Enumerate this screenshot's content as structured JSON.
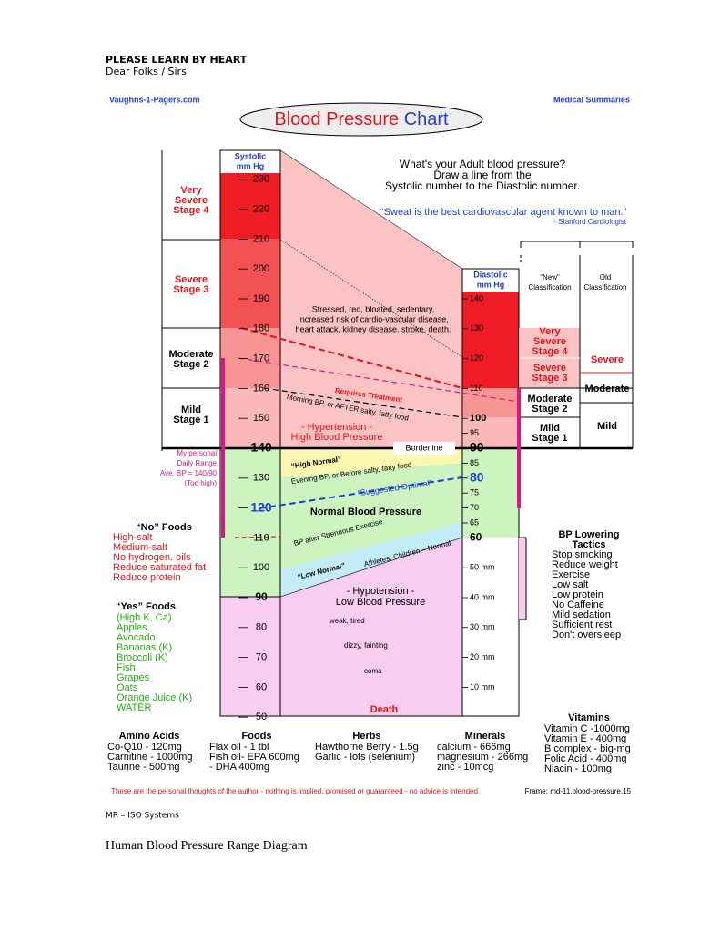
{
  "header": {
    "title": "PLEASE LEARN BY HEART",
    "subtitle": "Dear Folks / Sirs"
  },
  "chart": {
    "source": "Vaughns-1-Pagers.com",
    "series_name": "Medical Summaries",
    "title": "Blood Pressure",
    "title_accent": "Chart",
    "question": [
      "What's your Adult blood pressure?",
      "Draw a line from the",
      "Systolic number to the Diastolic number."
    ],
    "quote": "“Sweat is the best cardiovascular agent known to man.”",
    "quote_source": "- Stanford Cardiologist",
    "systolic": {
      "header": [
        "Systolic",
        "mm Hg"
      ],
      "ticks": [
        230,
        220,
        210,
        200,
        190,
        180,
        170,
        160,
        150,
        140,
        130,
        120,
        110,
        100,
        90,
        80,
        70,
        60,
        50
      ]
    },
    "diastolic": {
      "header": [
        "Diastolic",
        "mm Hg"
      ],
      "ticks": [
        140,
        130,
        120,
        110,
        100,
        95,
        90,
        85,
        80,
        75,
        70,
        65,
        60,
        {
          "value": 50,
          "label": "50 mm"
        },
        {
          "value": 40,
          "label": "40 mm"
        },
        {
          "value": 30,
          "label": "30 mm"
        },
        {
          "value": 20,
          "label": "20 mm"
        },
        {
          "value": 10,
          "label": "10 mm"
        }
      ]
    },
    "stages_left": [
      [
        "Very",
        "Severe",
        "Stage 4"
      ],
      [
        "Severe",
        "Stage 3"
      ],
      [
        "Moderate",
        "Stage 2"
      ],
      [
        "Mild",
        "Stage 1"
      ]
    ],
    "new_header": [
      "“New”",
      "Classification"
    ],
    "old_header": [
      "Old",
      "Classification"
    ],
    "new_stages": [
      [
        "Very",
        "Severe",
        "Stage 4"
      ],
      [
        "Severe",
        "Stage 3"
      ],
      [
        "Moderate",
        "Stage 2"
      ],
      [
        "Mild",
        "Stage 1"
      ]
    ],
    "old_stages": [
      "Severe",
      "Moderate",
      "Mild"
    ],
    "zone_notes": [
      "Stressed, red, bloated, sedentary,",
      "Increased risk of cardio-vascular disease,",
      "heart attack, kidney disease, stroke, death."
    ],
    "requires_treatment": "Requires Treatment",
    "morning_bp": "Morning BP, or AFTER salty, fatty food",
    "hypertension": [
      "- Hypertension -",
      "High  Blood  Pressure"
    ],
    "borderline": "Borderline",
    "high_normal": "“High Normal”",
    "evening_bp": "Evening BP, or Before salty, fatty food",
    "suggested_optimal": "“Suggested Optimal”",
    "normal": "Normal Blood Pressure",
    "after_exercise": "BP after Strenuous Exercise",
    "low_normal": "“Low Normal”",
    "athletes": "Athletes, Children ~ Normal",
    "hypotension": [
      "- Hypotension -",
      "Low  Blood  Pressure"
    ],
    "weak": "weak, tired",
    "dizzy": "dizzy, fainting",
    "coma": "coma",
    "death": "Death",
    "personal_range": [
      "My personal",
      "Daily Range",
      "Ave. BP = 140/90",
      "(Too high)"
    ],
    "no_foods": {
      "title": "“No” Foods",
      "items": [
        "High-salt",
        "Medium-salt",
        "No hydrogen. oils",
        "Reduce saturated fat",
        "Reduce protein"
      ]
    },
    "yes_foods": {
      "title": "“Yes” Foods",
      "items": [
        "(High K, Ca)",
        "Apples",
        "Avocado",
        "Bananas (K)",
        "Broccoli (K)",
        "Fish",
        "Grapes",
        "Oats",
        "Orange Juice (K)",
        "WATER"
      ]
    },
    "tactics": {
      "title": [
        "BP Lowering",
        "Tactics"
      ],
      "items": [
        "Stop smoking",
        "Reduce weight",
        "Exercise",
        "Low salt",
        "Low protein",
        "No Caffeine",
        "Mild sedation",
        "Sufficient rest",
        "Don't oversleep"
      ]
    },
    "vitamins": {
      "title": "Vitamins",
      "items": [
        "Vitamin C  -1000mg",
        "Vitamin E  -  400mg",
        "B complex - big-mg",
        "Folic Acid  - 400mg",
        "Niacin      - 100mg"
      ]
    },
    "amino": {
      "title": "Amino Acids",
      "items": [
        "Co-Q10  -    120mg",
        "Carnitine - 1000mg",
        "Taurine   -    500mg"
      ]
    },
    "foods": {
      "title": "Foods",
      "items": [
        "Flax oil   -  1 tbl",
        "Fish oil- EPA 600mg",
        "- DHA 400mg"
      ]
    },
    "herbs": {
      "title": "Herbs",
      "items": [
        "Hawthorne Berry - 1.5g",
        "Garlic - lots (selenium)"
      ]
    },
    "minerals": {
      "title": "Minerals",
      "items": [
        "calcium      -  666mg",
        "magnesium - 266mg",
        "zinc          -   10mcg"
      ]
    },
    "disclaimer": "These are the personal thoughts of the author - nothing is implied, promised or guaranteed - no advice is intended.",
    "frame": "Frame: md-11.blood-pressure.15"
  },
  "footer": {
    "org": "MR – ISO Systems",
    "caption": "Human Blood Pressure Range Diagram"
  }
}
